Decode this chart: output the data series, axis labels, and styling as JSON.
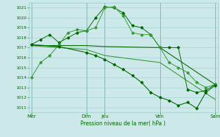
{
  "title": "Pression niveau de la mer( hPa )",
  "bg_color": "#cce8e8",
  "grid_color": "#99cccc",
  "line_color_dark": "#006600",
  "line_color_mid": "#339933",
  "ylim": [
    1010.5,
    1021.5
  ],
  "yticks": [
    1011,
    1012,
    1013,
    1014,
    1015,
    1016,
    1017,
    1018,
    1019,
    1020,
    1021
  ],
  "xtick_labels": [
    "Mer",
    "Dim",
    "Jeu",
    "Ven",
    "Sam"
  ],
  "xtick_positions": [
    0,
    6,
    8,
    14,
    20
  ],
  "xlim": [
    -0.3,
    20.3
  ],
  "series1_x": [
    0,
    1,
    2,
    3,
    4,
    5,
    6,
    7,
    8,
    9,
    10,
    11,
    12,
    13,
    14,
    15,
    16,
    17,
    18,
    19,
    20
  ],
  "series1_y": [
    1014.0,
    1015.5,
    1016.2,
    1017.3,
    1018.5,
    1018.8,
    1018.7,
    1019.0,
    1021.0,
    1021.1,
    1020.2,
    1018.5,
    1018.3,
    1018.3,
    1017.0,
    1015.5,
    1015.0,
    1014.5,
    1013.5,
    1013.0,
    1013.3
  ],
  "series2_x": [
    0,
    1,
    2,
    3,
    4,
    5,
    6,
    7,
    8,
    9,
    10,
    11,
    12,
    13,
    14,
    15,
    16,
    17,
    18,
    19,
    20
  ],
  "series2_y": [
    1017.3,
    1017.8,
    1018.3,
    1017.5,
    1018.0,
    1018.5,
    1018.7,
    1020.0,
    1021.1,
    1021.0,
    1020.5,
    1019.2,
    1019.0,
    1018.3,
    1017.0,
    1017.0,
    1017.0,
    1012.8,
    1012.5,
    1012.7,
    1013.3
  ],
  "series3_x": [
    0,
    6,
    8,
    14,
    20
  ],
  "series3_y": [
    1017.2,
    1017.2,
    1017.1,
    1017.0,
    1013.3
  ],
  "series4_x": [
    0,
    6,
    8,
    14,
    20
  ],
  "series4_y": [
    1017.2,
    1016.8,
    1016.2,
    1015.5,
    1011.8
  ],
  "series5_x": [
    0,
    3,
    6,
    7,
    8,
    9,
    10,
    11,
    12,
    13,
    14,
    15,
    16,
    17,
    18,
    19,
    20
  ],
  "series5_y": [
    1017.3,
    1017.1,
    1016.5,
    1016.2,
    1015.8,
    1015.3,
    1014.8,
    1014.2,
    1013.5,
    1012.5,
    1012.0,
    1011.7,
    1011.2,
    1011.5,
    1010.9,
    1012.5,
    1013.2
  ],
  "vlines": [
    0,
    6,
    8,
    14,
    20
  ]
}
